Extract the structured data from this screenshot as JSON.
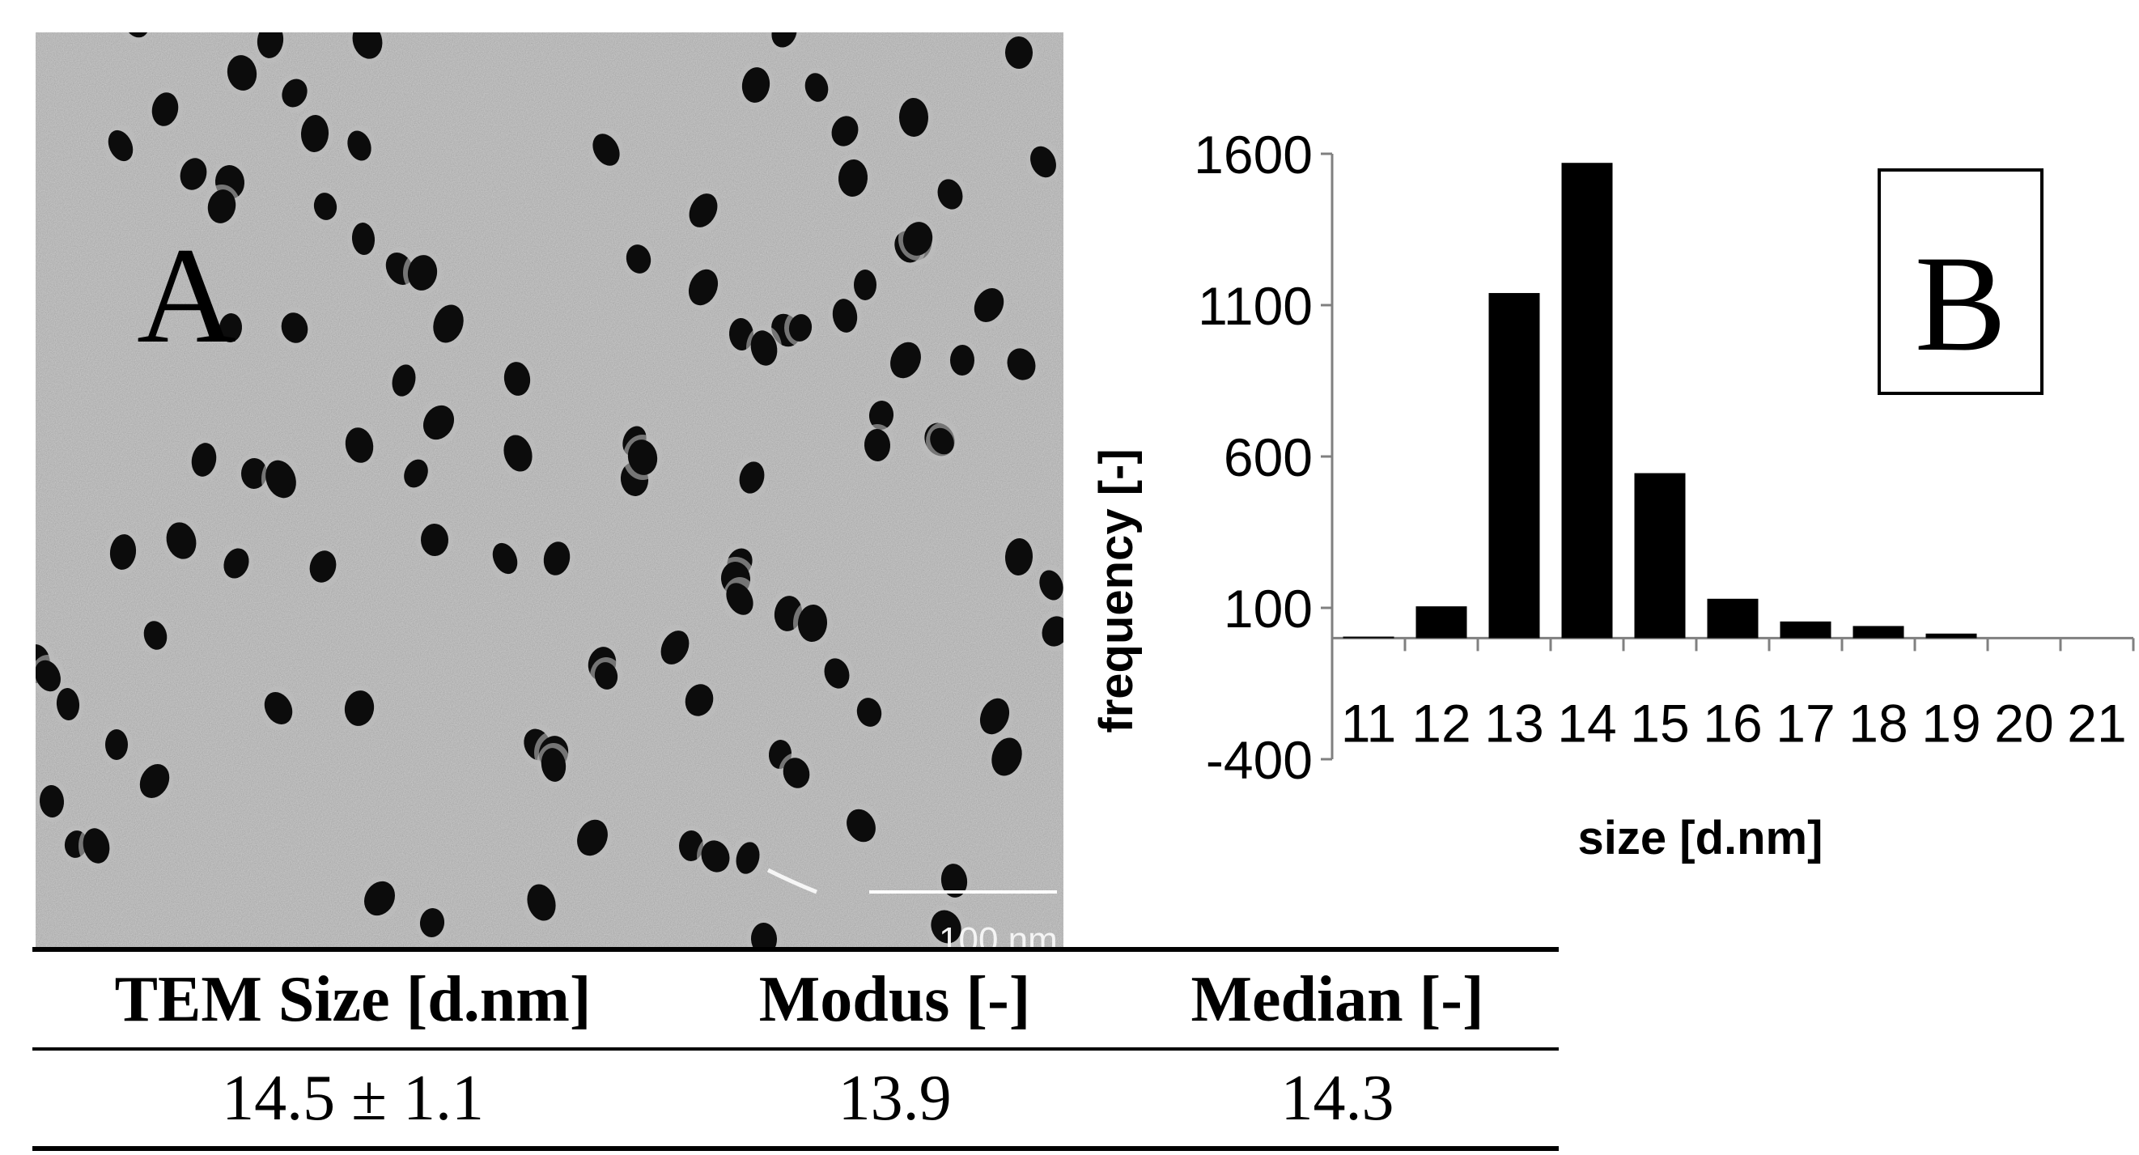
{
  "panel_a": {
    "label": "A",
    "scale_bar_label": "100 nm",
    "background_color": "#cfcfcf",
    "particle_color": "#0c0c0c"
  },
  "panel_b": {
    "label": "B"
  },
  "chart_data": {
    "type": "bar",
    "title": "",
    "xlabel": "size [d.nm]",
    "ylabel": "frequency [-]",
    "categories": [
      "11",
      "12",
      "13",
      "14",
      "15",
      "16",
      "17",
      "18",
      "19",
      "20",
      "21"
    ],
    "values": [
      5,
      105,
      1140,
      1570,
      545,
      130,
      55,
      40,
      15,
      0,
      0
    ],
    "ylim": [
      -400,
      1600
    ],
    "yticks": [
      -400,
      100,
      600,
      1100,
      1600
    ],
    "grid": false,
    "legend": "none",
    "bar_color": "#000000"
  },
  "table": {
    "headers": [
      "TEM Size [d.nm]",
      "Modus [-]",
      "Median [-]"
    ],
    "rows": [
      [
        "14.5 ± 1.1",
        "13.9",
        "14.3"
      ]
    ]
  }
}
